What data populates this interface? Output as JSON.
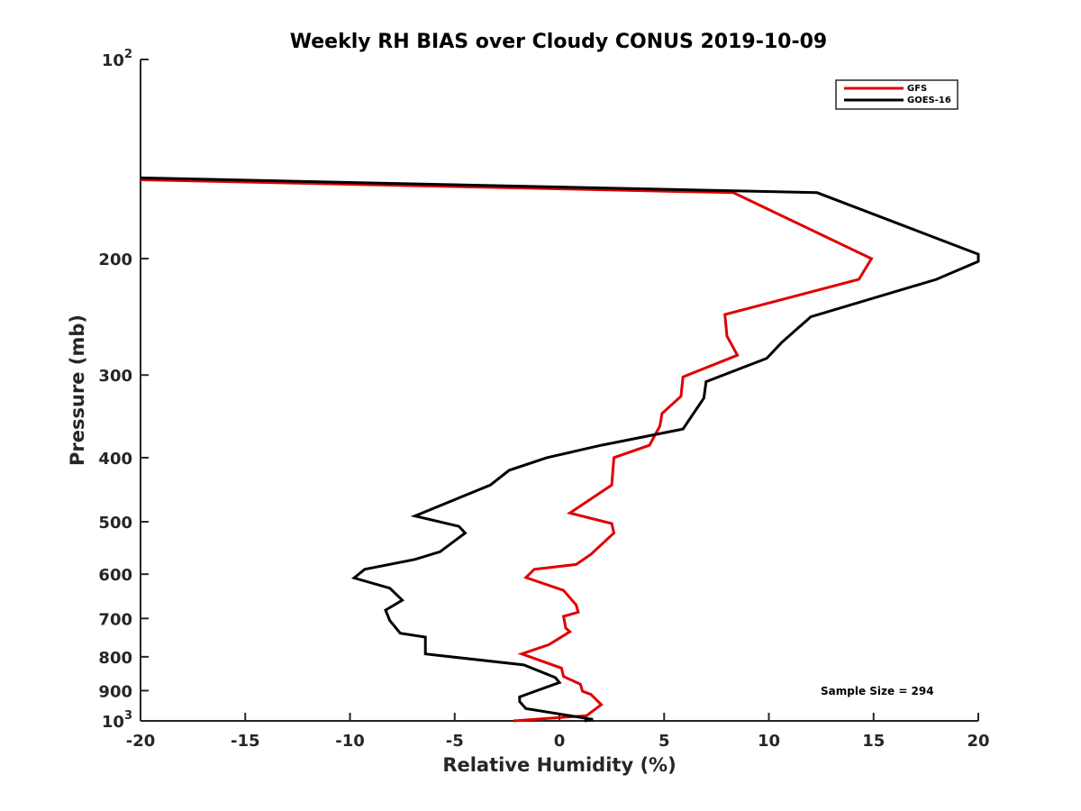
{
  "chart_data": {
    "type": "line",
    "title": "Weekly RH BIAS over Cloudy CONUS 2019-10-09",
    "xlabel": "Relative Humidity (%)",
    "ylabel": "Pressure (mb)",
    "xlim": [
      -20,
      20
    ],
    "ylim": [
      100,
      1000
    ],
    "yscale": "log",
    "y_reversed": true,
    "xticks": [
      -20,
      -15,
      -10,
      -5,
      0,
      5,
      10,
      15,
      20
    ],
    "yticks": [
      {
        "value": 100,
        "label": "10",
        "sup": "2"
      },
      {
        "value": 200,
        "label": "200",
        "sup": ""
      },
      {
        "value": 300,
        "label": "300",
        "sup": ""
      },
      {
        "value": 400,
        "label": "400",
        "sup": ""
      },
      {
        "value": 500,
        "label": "500",
        "sup": ""
      },
      {
        "value": 600,
        "label": "600",
        "sup": ""
      },
      {
        "value": 700,
        "label": "700",
        "sup": ""
      },
      {
        "value": 800,
        "label": "800",
        "sup": ""
      },
      {
        "value": 900,
        "label": "900",
        "sup": ""
      },
      {
        "value": 1000,
        "label": "10",
        "sup": "3"
      }
    ],
    "legend_position": "top-right",
    "annotation": "Sample Size = 294",
    "series": [
      {
        "name": "GFS",
        "color": "#e00000",
        "points": [
          [
            -20.0,
            152
          ],
          [
            8.3,
            159
          ],
          [
            14.9,
            200
          ],
          [
            14.3,
            215
          ],
          [
            7.9,
            243
          ],
          [
            8.0,
            262
          ],
          [
            8.5,
            280
          ],
          [
            5.9,
            302
          ],
          [
            5.8,
            323
          ],
          [
            4.9,
            343
          ],
          [
            4.8,
            358
          ],
          [
            4.3,
            383
          ],
          [
            2.6,
            400
          ],
          [
            2.5,
            440
          ],
          [
            0.5,
            485
          ],
          [
            2.5,
            503
          ],
          [
            2.6,
            520
          ],
          [
            1.5,
            560
          ],
          [
            0.8,
            580
          ],
          [
            -1.2,
            590
          ],
          [
            -1.6,
            607
          ],
          [
            0.2,
            635
          ],
          [
            0.8,
            668
          ],
          [
            0.9,
            685
          ],
          [
            0.2,
            695
          ],
          [
            0.3,
            724
          ],
          [
            0.5,
            733
          ],
          [
            -0.5,
            767
          ],
          [
            -1.8,
            792
          ],
          [
            0.1,
            832
          ],
          [
            0.2,
            857
          ],
          [
            1.0,
            880
          ],
          [
            1.1,
            902
          ],
          [
            1.5,
            912
          ],
          [
            2.0,
            945
          ],
          [
            1.3,
            982
          ],
          [
            -2.2,
            1000
          ]
        ]
      },
      {
        "name": "GOES-16",
        "color": "#000000",
        "points": [
          [
            -20.0,
            151
          ],
          [
            12.3,
            159
          ],
          [
            20.0,
            197
          ],
          [
            20.0,
            202
          ],
          [
            18.0,
            215
          ],
          [
            12.0,
            245
          ],
          [
            10.6,
            268
          ],
          [
            9.9,
            283
          ],
          [
            7.0,
            307
          ],
          [
            6.9,
            325
          ],
          [
            6.4,
            343
          ],
          [
            5.9,
            362
          ],
          [
            2.0,
            383
          ],
          [
            -0.6,
            400
          ],
          [
            -2.4,
            418
          ],
          [
            -3.3,
            440
          ],
          [
            -6.9,
            490
          ],
          [
            -4.8,
            508
          ],
          [
            -4.5,
            520
          ],
          [
            -5.7,
            555
          ],
          [
            -6.9,
            570
          ],
          [
            -9.3,
            590
          ],
          [
            -9.8,
            608
          ],
          [
            -8.1,
            630
          ],
          [
            -7.5,
            657
          ],
          [
            -8.3,
            680
          ],
          [
            -8.1,
            705
          ],
          [
            -7.6,
            737
          ],
          [
            -6.4,
            747
          ],
          [
            -6.4,
            792
          ],
          [
            -1.7,
            823
          ],
          [
            -0.2,
            860
          ],
          [
            0.0,
            875
          ],
          [
            -1.9,
            920
          ],
          [
            -1.9,
            935
          ],
          [
            -1.6,
            958
          ],
          [
            1.6,
            995
          ],
          [
            1.2,
            1000
          ]
        ]
      }
    ]
  }
}
